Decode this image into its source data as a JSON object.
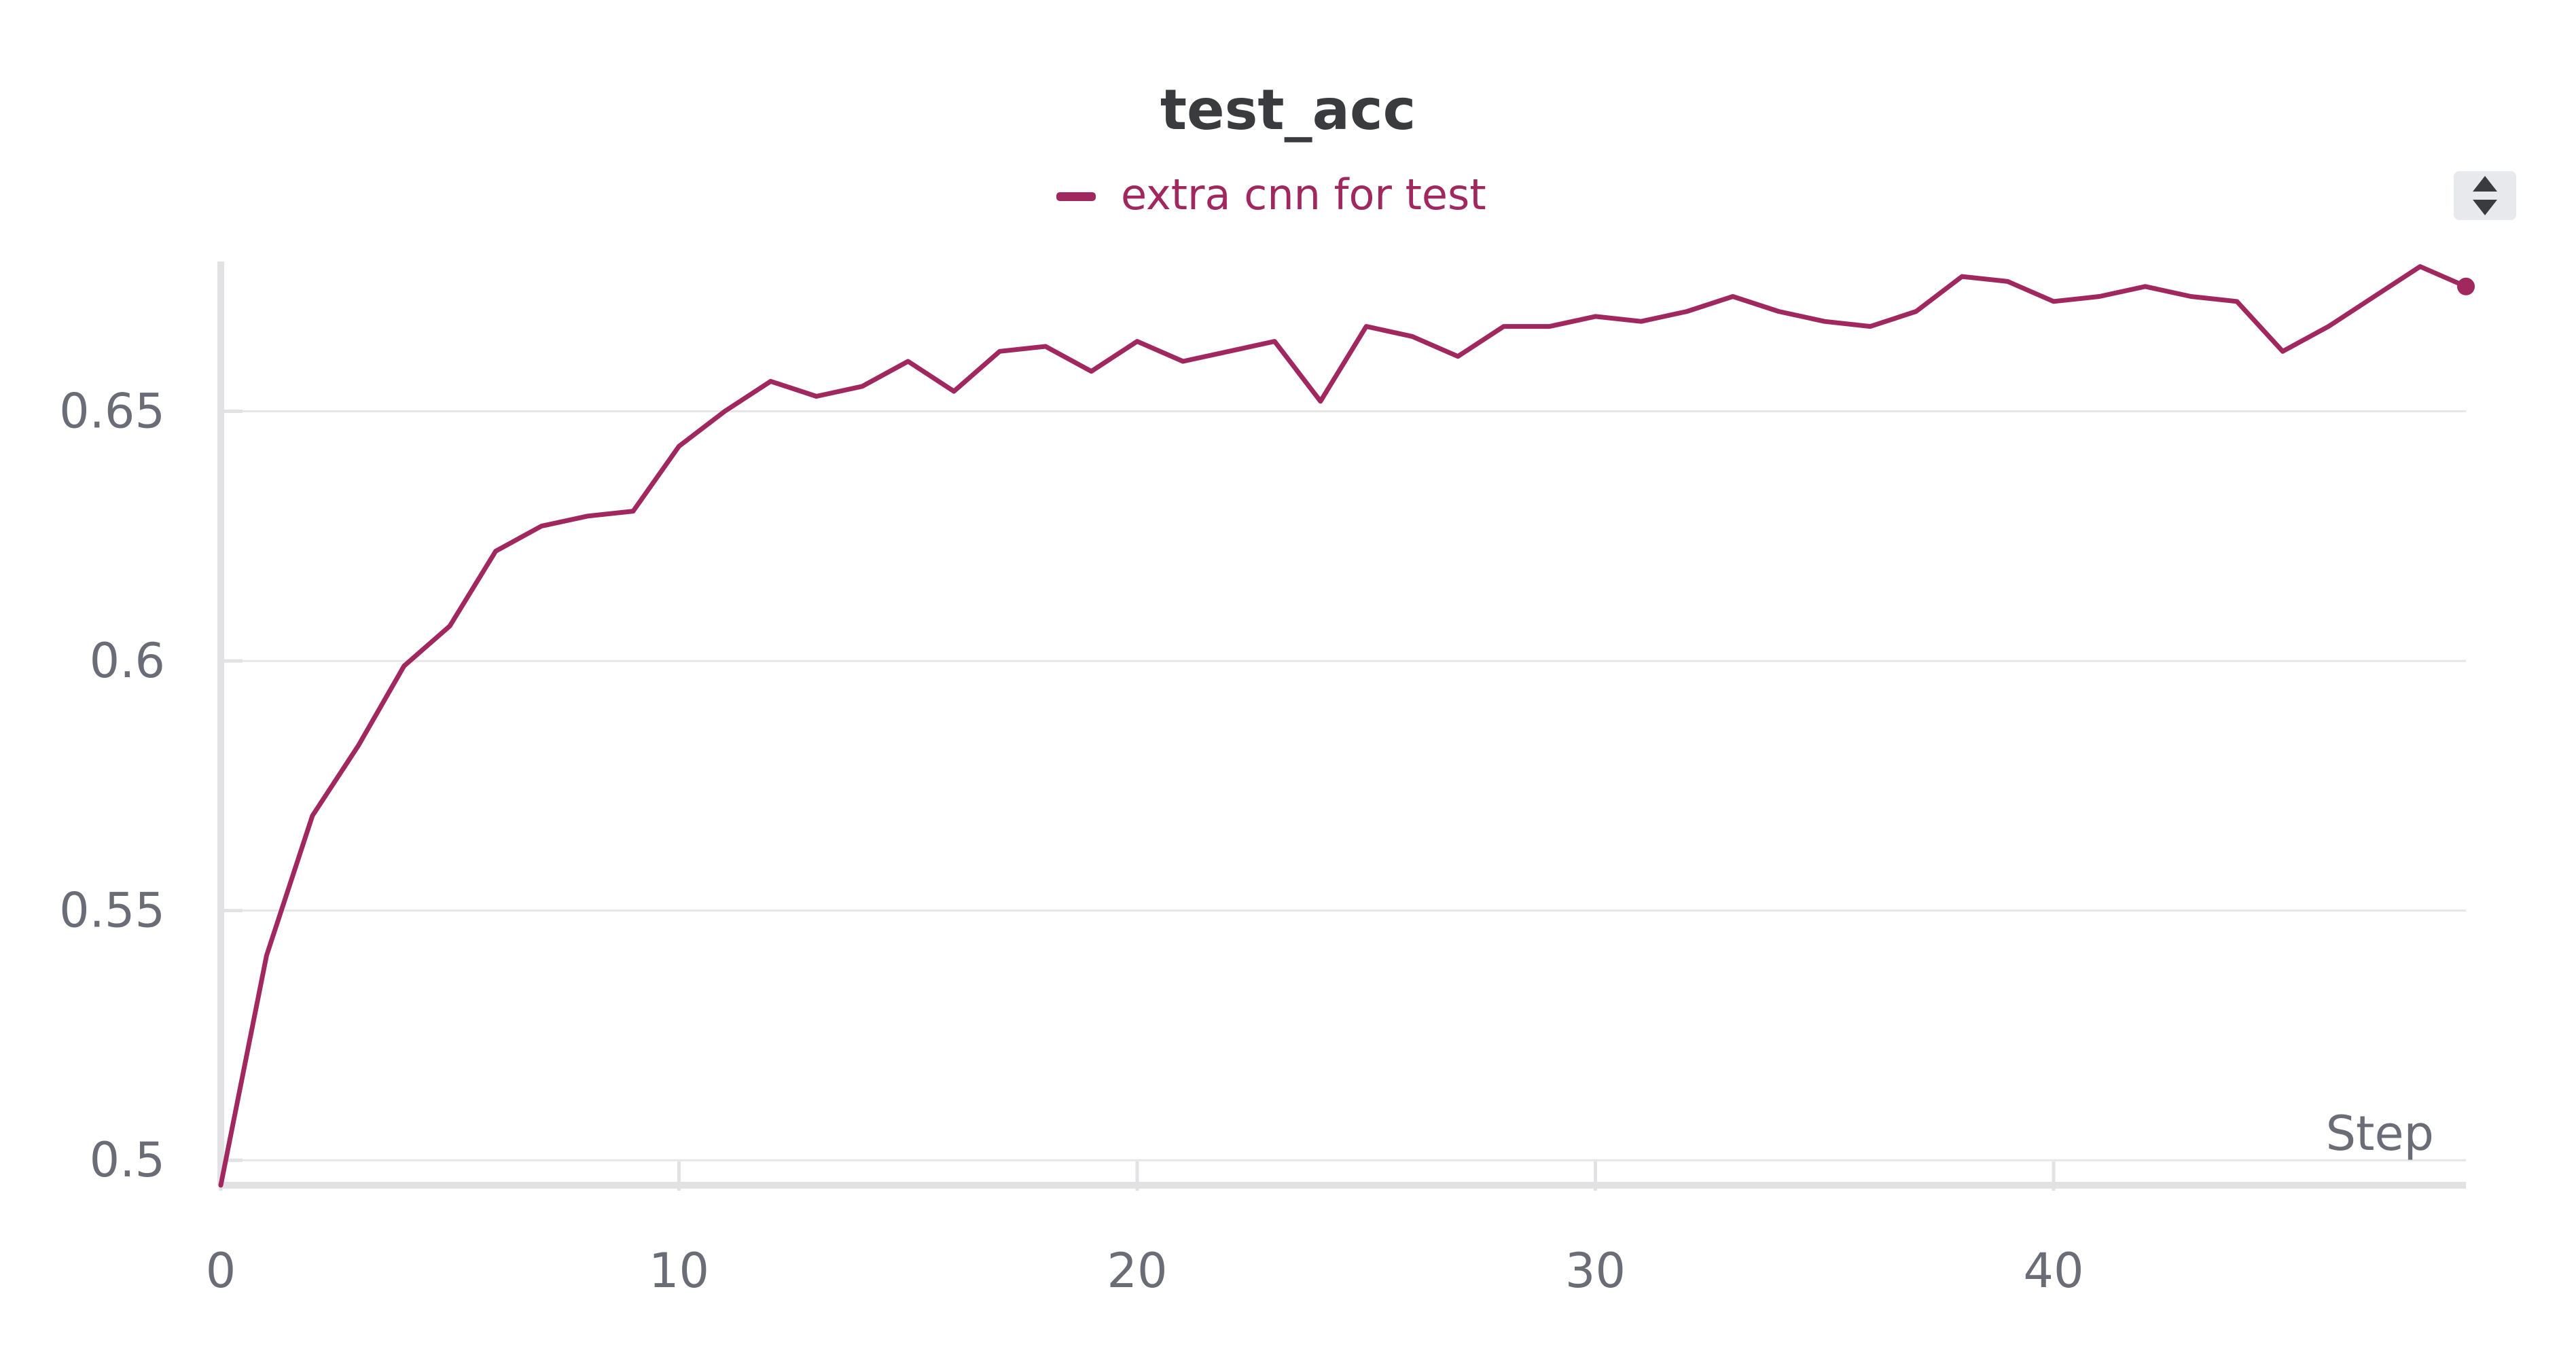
{
  "chart_data": {
    "type": "line",
    "title": "test_acc",
    "xlabel": "Step",
    "ylabel": "",
    "xlim": [
      0,
      49
    ],
    "ylim": [
      0.495,
      0.68
    ],
    "x_ticks": [
      0,
      10,
      20,
      30,
      40
    ],
    "y_ticks": [
      0.5,
      0.55,
      0.6,
      0.65
    ],
    "y_tick_labels": [
      "0.5",
      "0.55",
      "0.6",
      "0.65"
    ],
    "grid": true,
    "legend_position": "top-center",
    "series": [
      {
        "name": "extra cnn for test",
        "color": "#a0285f",
        "x": [
          0,
          1,
          2,
          3,
          4,
          5,
          6,
          7,
          8,
          9,
          10,
          11,
          12,
          13,
          14,
          15,
          16,
          17,
          18,
          19,
          20,
          21,
          22,
          23,
          24,
          25,
          26,
          27,
          28,
          29,
          30,
          31,
          32,
          33,
          34,
          35,
          36,
          37,
          38,
          39,
          40,
          41,
          42,
          43,
          44,
          45,
          46,
          47,
          48,
          49
        ],
        "y": [
          0.495,
          0.541,
          0.569,
          0.583,
          0.599,
          0.607,
          0.622,
          0.627,
          0.629,
          0.63,
          0.643,
          0.65,
          0.656,
          0.653,
          0.655,
          0.66,
          0.654,
          0.662,
          0.663,
          0.658,
          0.664,
          0.66,
          0.662,
          0.664,
          0.652,
          0.667,
          0.665,
          0.661,
          0.667,
          0.667,
          0.669,
          0.668,
          0.67,
          0.673,
          0.67,
          0.668,
          0.667,
          0.67,
          0.677,
          0.676,
          0.672,
          0.673,
          0.675,
          0.673,
          0.672,
          0.662,
          0.667,
          0.673,
          0.679,
          0.675
        ]
      }
    ]
  }
}
